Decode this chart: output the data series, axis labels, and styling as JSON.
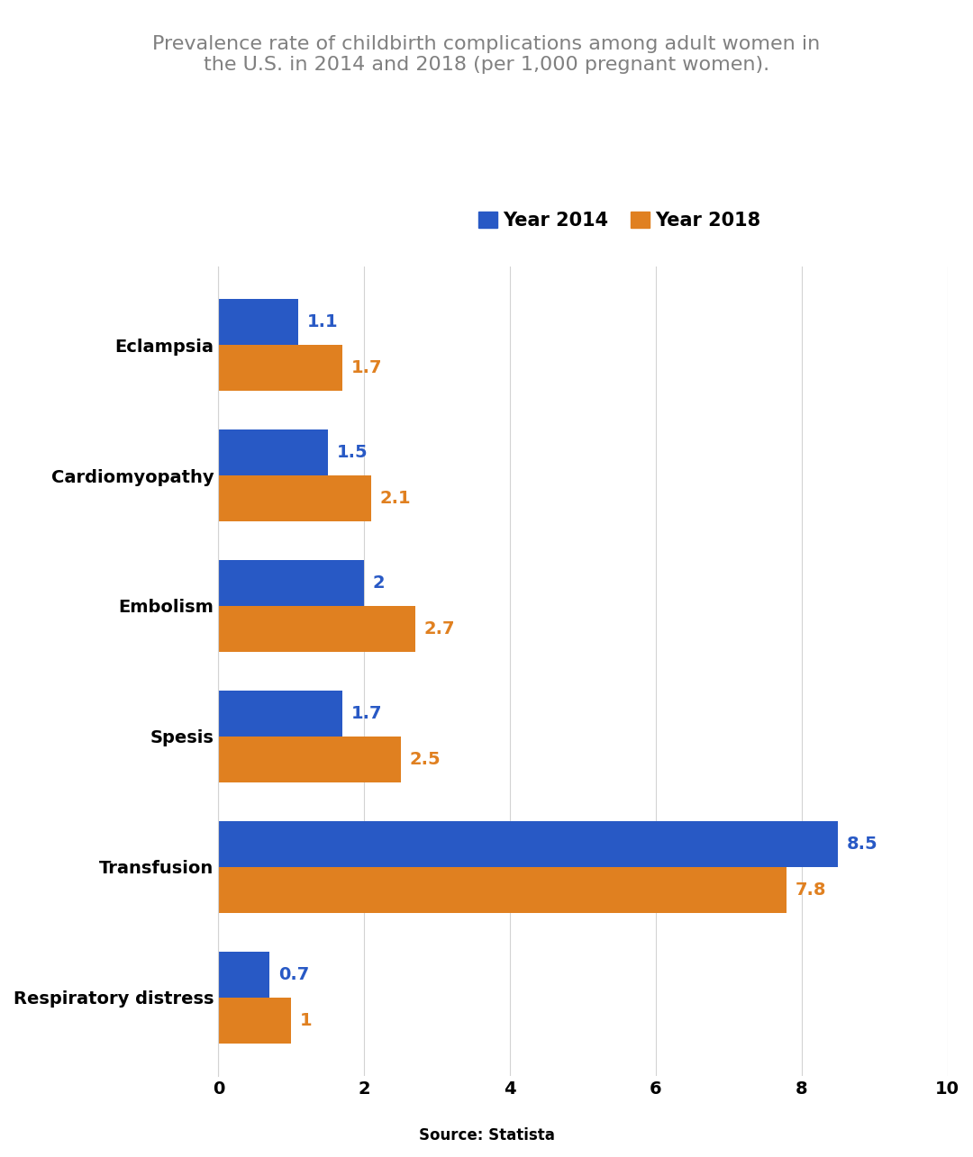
{
  "title": "Prevalence rate of childbirth complications among adult women in\nthe U.S. in 2014 and 2018 (per 1,000 pregnant women).",
  "source": "Source: Statista",
  "categories": [
    "Respiratory distress",
    "Transfusion",
    "Spesis",
    "Embolism",
    "Cardiomyopathy",
    "Eclampsia"
  ],
  "values_2014": [
    0.7,
    8.5,
    1.7,
    2.0,
    1.5,
    1.1
  ],
  "values_2018": [
    1.0,
    7.8,
    2.5,
    2.7,
    2.1,
    1.7
  ],
  "color_2014": "#2859C5",
  "color_2018": "#E08020",
  "xlim": [
    0,
    10
  ],
  "xticks": [
    0,
    2,
    4,
    6,
    8,
    10
  ],
  "bar_height": 0.35,
  "background_color": "#ffffff",
  "title_color": "#808080",
  "legend_labels": [
    "Year 2014",
    "Year 2018"
  ],
  "title_fontsize": 16,
  "label_fontsize": 14,
  "tick_fontsize": 14,
  "source_fontsize": 12
}
